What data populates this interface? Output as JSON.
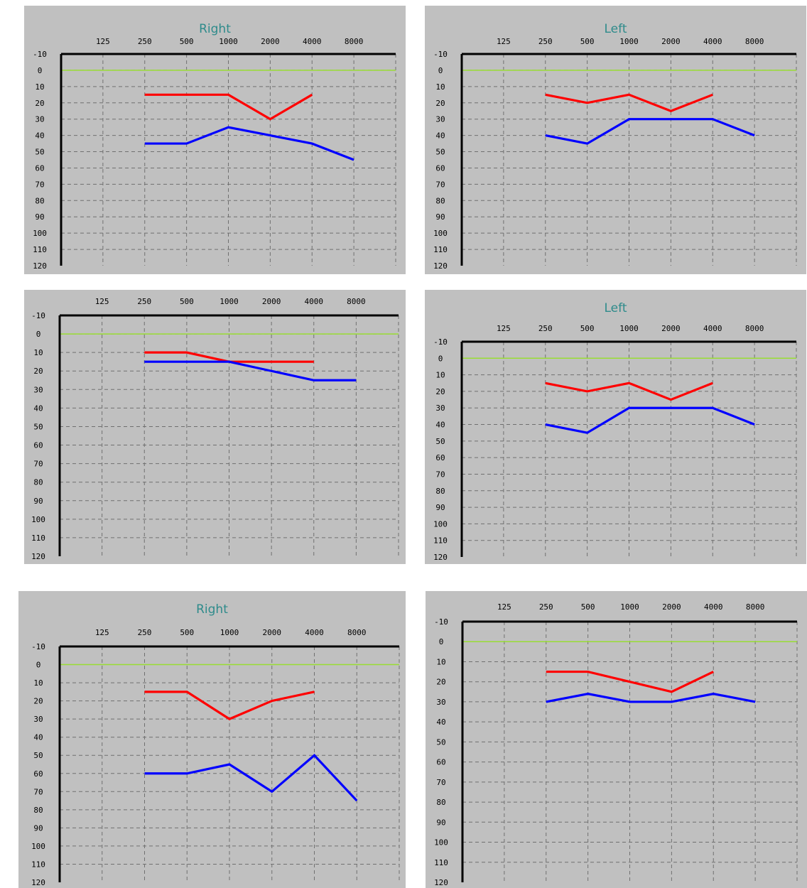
{
  "chart_data": [
    {
      "type": "line",
      "title": "Right",
      "x": [
        125,
        250,
        500,
        1000,
        2000,
        4000,
        8000
      ],
      "x_tick_labels": [
        "125",
        "250",
        "500",
        "1000",
        "2000",
        "4000",
        "8000"
      ],
      "y_tick_labels": [
        "-10",
        "0",
        "10",
        "20",
        "30",
        "40",
        "50",
        "60",
        "70",
        "80",
        "90",
        "100",
        "110",
        "120"
      ],
      "ylim": [
        -10,
        120
      ],
      "y_inverted": true,
      "grid": true,
      "reference_line": {
        "y": 0,
        "color": "#99dd33"
      },
      "series": [
        {
          "color": "#ff0000",
          "points": [
            [
              250,
              15
            ],
            [
              500,
              15
            ],
            [
              1000,
              15
            ],
            [
              2000,
              30
            ],
            [
              4000,
              15
            ]
          ]
        },
        {
          "color": "#0000ff",
          "points": [
            [
              250,
              45
            ],
            [
              500,
              45
            ],
            [
              1000,
              35
            ],
            [
              2000,
              40
            ],
            [
              4000,
              45
            ],
            [
              8000,
              55
            ]
          ]
        }
      ]
    },
    {
      "type": "line",
      "title": "Left",
      "x": [
        125,
        250,
        500,
        1000,
        2000,
        4000,
        8000
      ],
      "x_tick_labels": [
        "125",
        "250",
        "500",
        "1000",
        "2000",
        "4000",
        "8000"
      ],
      "y_tick_labels": [
        "-10",
        "0",
        "10",
        "20",
        "30",
        "40",
        "50",
        "60",
        "70",
        "80",
        "90",
        "100",
        "110",
        "120"
      ],
      "ylim": [
        -10,
        120
      ],
      "y_inverted": true,
      "grid": true,
      "reference_line": {
        "y": 0,
        "color": "#99dd33"
      },
      "series": [
        {
          "color": "#ff0000",
          "points": [
            [
              250,
              15
            ],
            [
              500,
              20
            ],
            [
              1000,
              15
            ],
            [
              2000,
              25
            ],
            [
              4000,
              15
            ]
          ]
        },
        {
          "color": "#0000ff",
          "points": [
            [
              250,
              40
            ],
            [
              500,
              45
            ],
            [
              1000,
              30
            ],
            [
              2000,
              30
            ],
            [
              4000,
              30
            ],
            [
              8000,
              40
            ]
          ]
        }
      ]
    },
    {
      "type": "line",
      "title": "",
      "x": [
        125,
        250,
        500,
        1000,
        2000,
        4000,
        8000
      ],
      "x_tick_labels": [
        "125",
        "250",
        "500",
        "1000",
        "2000",
        "4000",
        "8000"
      ],
      "y_tick_labels": [
        "-10",
        "0",
        "10",
        "20",
        "30",
        "40",
        "50",
        "60",
        "70",
        "80",
        "90",
        "100",
        "110",
        "120"
      ],
      "ylim": [
        -10,
        120
      ],
      "y_inverted": true,
      "grid": true,
      "reference_line": {
        "y": 0,
        "color": "#99dd33"
      },
      "series": [
        {
          "color": "#ff0000",
          "points": [
            [
              250,
              10
            ],
            [
              500,
              10
            ],
            [
              1000,
              15
            ],
            [
              2000,
              15
            ],
            [
              4000,
              15
            ]
          ]
        },
        {
          "color": "#0000ff",
          "points": [
            [
              250,
              15
            ],
            [
              500,
              15
            ],
            [
              1000,
              15
            ],
            [
              2000,
              20
            ],
            [
              4000,
              25
            ],
            [
              8000,
              25
            ]
          ]
        }
      ]
    },
    {
      "type": "line",
      "title": "Left",
      "x": [
        125,
        250,
        500,
        1000,
        2000,
        4000,
        8000
      ],
      "x_tick_labels": [
        "125",
        "250",
        "500",
        "1000",
        "2000",
        "4000",
        "8000"
      ],
      "y_tick_labels": [
        "-10",
        "0",
        "10",
        "20",
        "30",
        "40",
        "50",
        "60",
        "70",
        "80",
        "90",
        "100",
        "110",
        "120"
      ],
      "ylim": [
        -10,
        120
      ],
      "y_inverted": true,
      "grid": true,
      "reference_line": {
        "y": 0,
        "color": "#99dd33"
      },
      "series": [
        {
          "color": "#ff0000",
          "points": [
            [
              250,
              15
            ],
            [
              500,
              20
            ],
            [
              1000,
              15
            ],
            [
              2000,
              25
            ],
            [
              4000,
              15
            ]
          ]
        },
        {
          "color": "#0000ff",
          "points": [
            [
              250,
              40
            ],
            [
              500,
              45
            ],
            [
              1000,
              30
            ],
            [
              2000,
              30
            ],
            [
              4000,
              30
            ],
            [
              8000,
              40
            ]
          ]
        }
      ]
    },
    {
      "type": "line",
      "title": "Right",
      "x": [
        125,
        250,
        500,
        1000,
        2000,
        4000,
        8000
      ],
      "x_tick_labels": [
        "125",
        "250",
        "500",
        "1000",
        "2000",
        "4000",
        "8000"
      ],
      "y_tick_labels": [
        "-10",
        "0",
        "10",
        "20",
        "30",
        "40",
        "50",
        "60",
        "70",
        "80",
        "90",
        "100",
        "110",
        "120"
      ],
      "ylim": [
        -10,
        120
      ],
      "y_inverted": true,
      "grid": true,
      "reference_line": {
        "y": 0,
        "color": "#99dd33"
      },
      "series": [
        {
          "color": "#ff0000",
          "points": [
            [
              250,
              15
            ],
            [
              500,
              15
            ],
            [
              1000,
              30
            ],
            [
              2000,
              20
            ],
            [
              4000,
              15
            ]
          ]
        },
        {
          "color": "#0000ff",
          "points": [
            [
              250,
              60
            ],
            [
              500,
              60
            ],
            [
              1000,
              55
            ],
            [
              2000,
              70
            ],
            [
              4000,
              50
            ],
            [
              8000,
              75
            ]
          ]
        }
      ]
    },
    {
      "type": "line",
      "title": "",
      "x": [
        125,
        250,
        500,
        1000,
        2000,
        4000,
        8000
      ],
      "x_tick_labels": [
        "125",
        "250",
        "500",
        "1000",
        "2000",
        "4000",
        "8000"
      ],
      "y_tick_labels": [
        "-10",
        "0",
        "10",
        "20",
        "30",
        "40",
        "50",
        "60",
        "70",
        "80",
        "90",
        "100",
        "110",
        "120"
      ],
      "ylim": [
        -10,
        120
      ],
      "y_inverted": true,
      "grid": true,
      "reference_line": {
        "y": 0,
        "color": "#99dd33"
      },
      "series": [
        {
          "color": "#ff0000",
          "points": [
            [
              250,
              15
            ],
            [
              500,
              15
            ],
            [
              1000,
              20
            ],
            [
              2000,
              25
            ],
            [
              4000,
              15
            ]
          ]
        },
        {
          "color": "#0000ff",
          "points": [
            [
              250,
              30
            ],
            [
              500,
              26
            ],
            [
              1000,
              30
            ],
            [
              2000,
              30
            ],
            [
              4000,
              26
            ],
            [
              8000,
              30
            ]
          ]
        }
      ]
    }
  ]
}
